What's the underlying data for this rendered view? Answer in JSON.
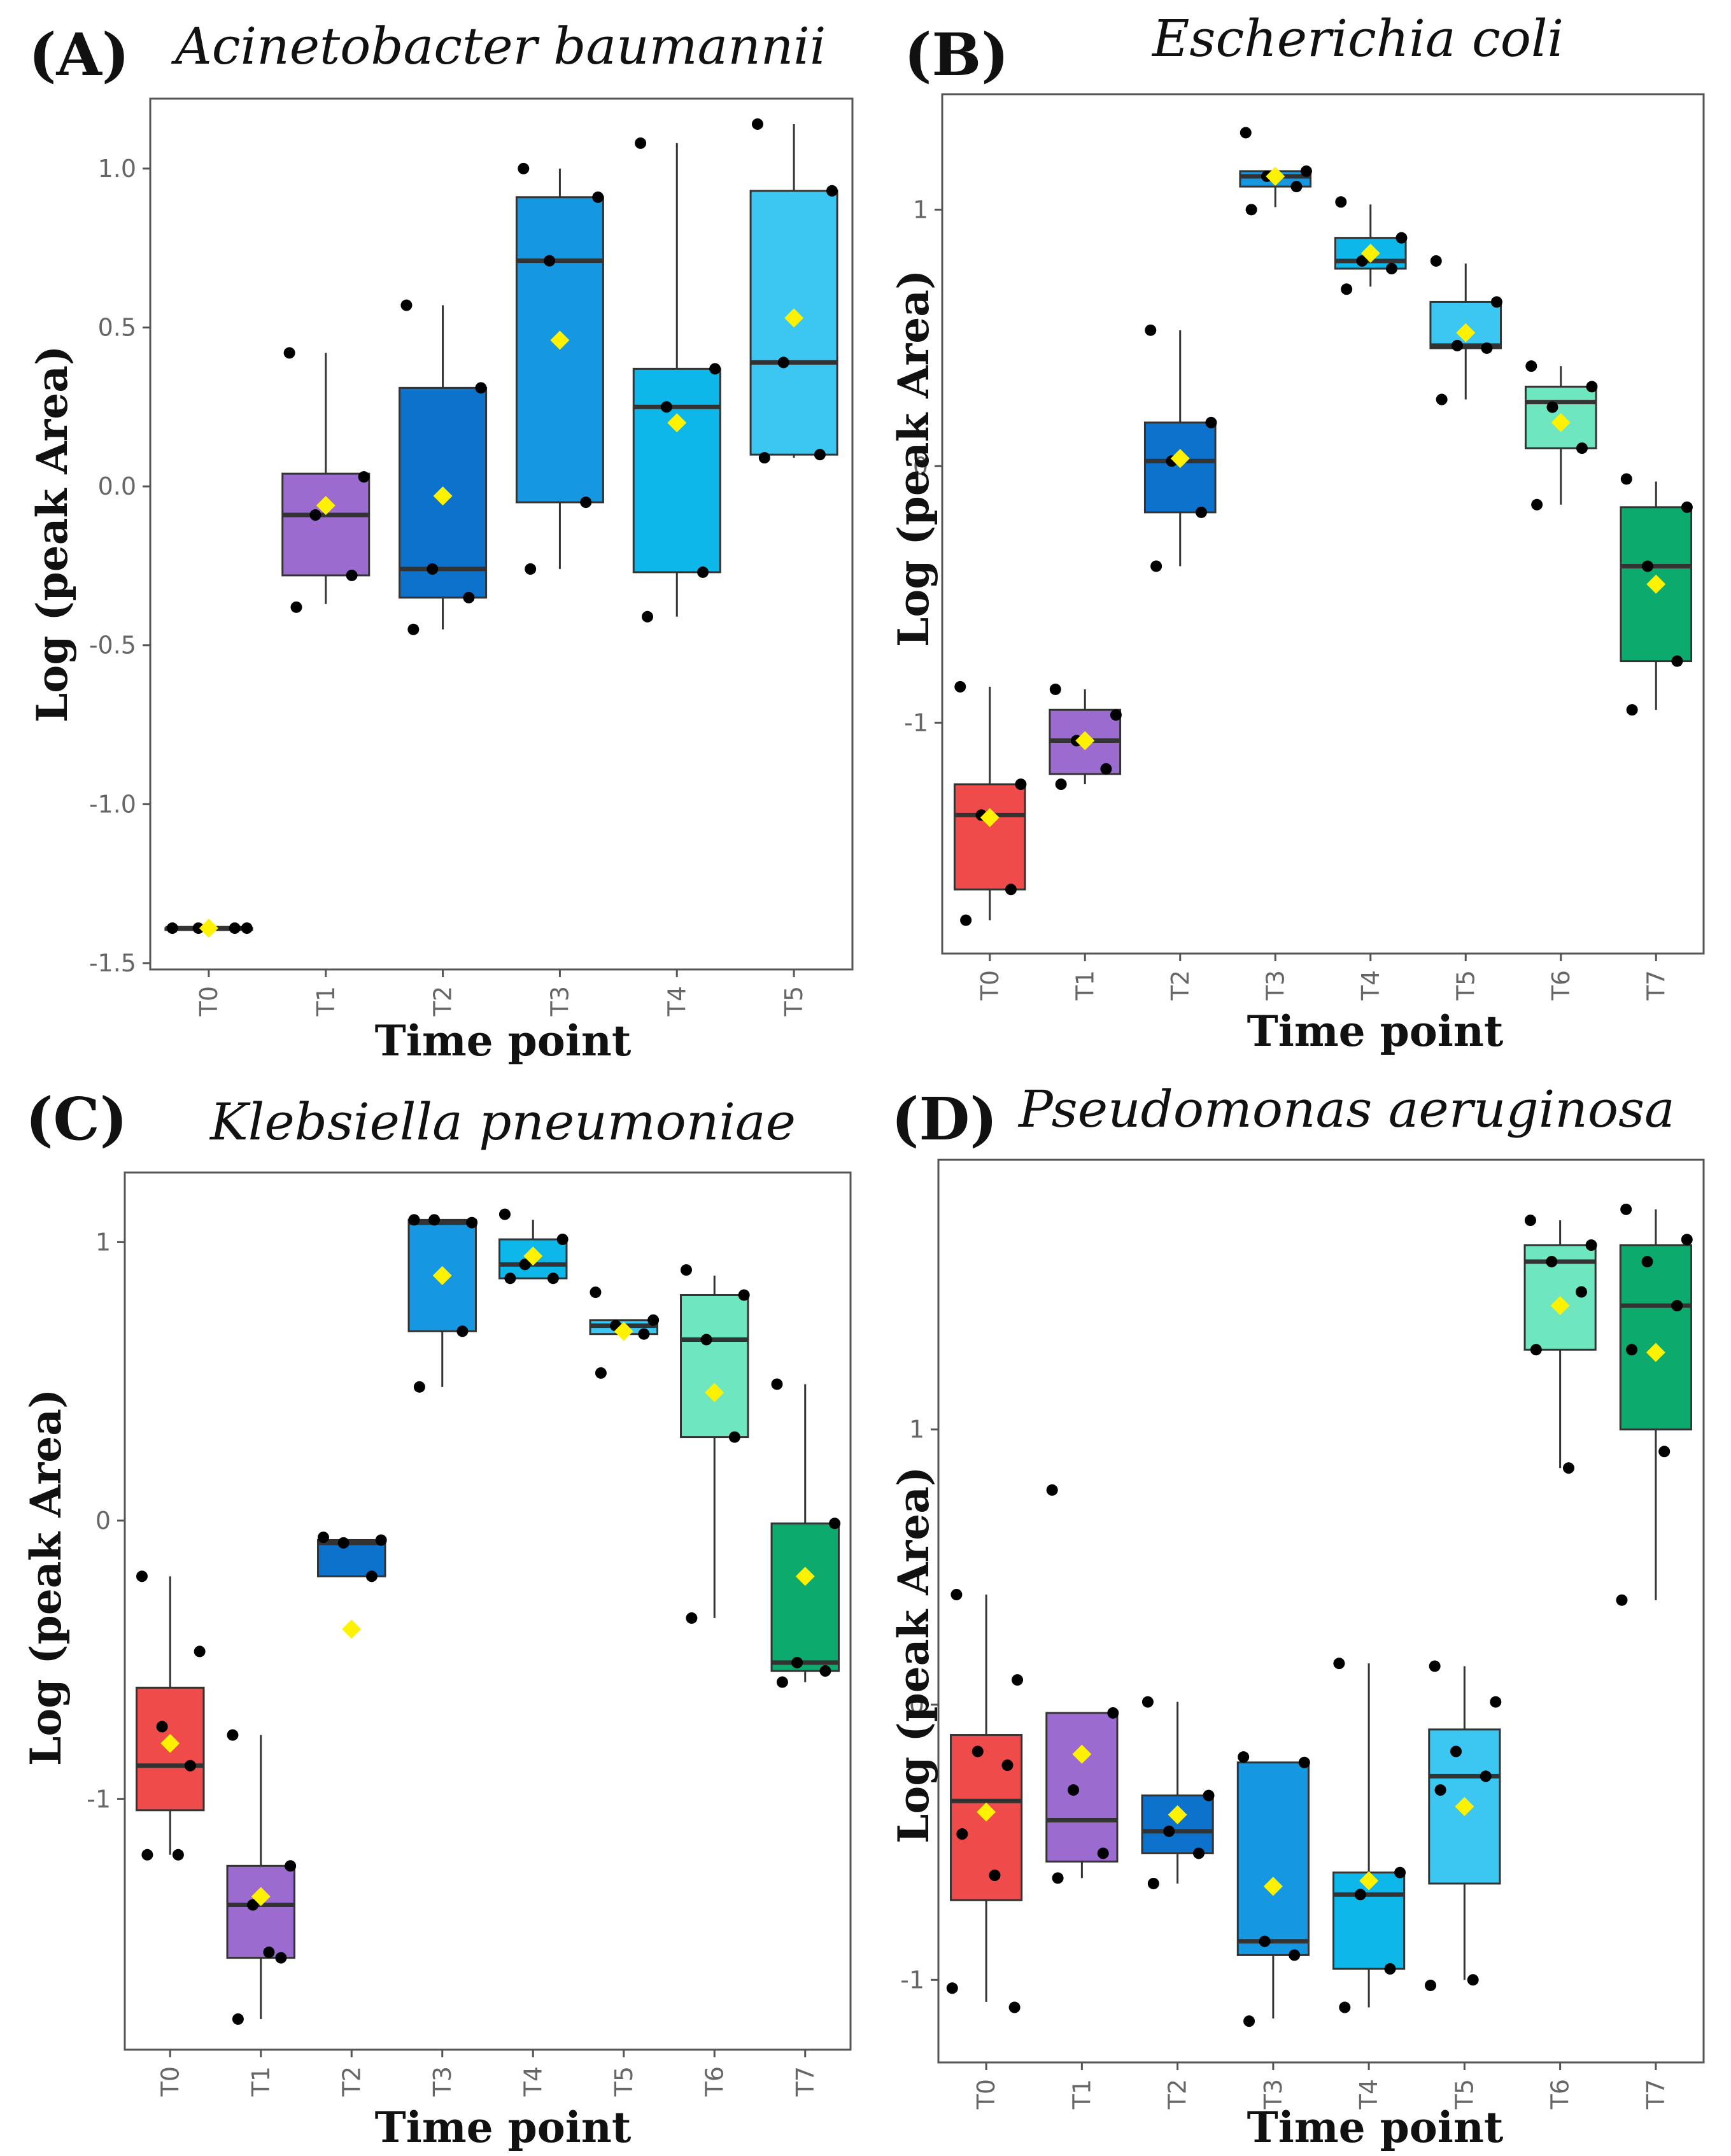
{
  "colors": {
    "T0": "#F04B4B",
    "T1": "#9B6BD0",
    "T2": "#0C72CC",
    "T3": "#1598E1",
    "T4": "#0DB7EA",
    "T5": "#3CC7F2",
    "T6": "#6EE6C0",
    "T7": "#0DAA6E",
    "mean_marker": "#FFF200",
    "points": "#000000"
  },
  "chart_data": [
    {
      "type": "box",
      "panel": "(A)",
      "title": "Acinetobacter baumannii",
      "xlabel": "Time point",
      "ylabel": "Log (peak Area)",
      "ylim": [
        -1.52,
        1.22
      ],
      "yticks": [
        -1.5,
        -1.0,
        -0.5,
        0.0,
        0.5,
        1.0
      ],
      "ytick_labels": [
        "-1.5",
        "-1.0",
        "-0.5",
        "0.0",
        "0.5",
        "1.0"
      ],
      "categories": [
        "T0",
        "T1",
        "T2",
        "T3",
        "T4",
        "T5"
      ],
      "boxes": [
        {
          "cat": "T0",
          "q1": -1.39,
          "median": -1.39,
          "q3": -1.39,
          "wlo": -1.39,
          "whi": -1.39,
          "mean": -1.39,
          "points": [
            -1.39,
            -1.39,
            -1.39,
            -1.39
          ]
        },
        {
          "cat": "T1",
          "q1": -0.28,
          "median": -0.09,
          "q3": 0.04,
          "wlo": -0.37,
          "whi": 0.42,
          "mean": -0.06,
          "points": [
            0.42,
            0.03,
            -0.09,
            -0.28,
            -0.38
          ]
        },
        {
          "cat": "T2",
          "q1": -0.35,
          "median": -0.26,
          "q3": 0.31,
          "wlo": -0.45,
          "whi": 0.57,
          "mean": -0.03,
          "points": [
            0.57,
            0.31,
            -0.26,
            -0.35,
            -0.45
          ]
        },
        {
          "cat": "T3",
          "q1": -0.05,
          "median": 0.71,
          "q3": 0.91,
          "wlo": -0.26,
          "whi": 1.0,
          "mean": 0.46,
          "points": [
            1.0,
            0.91,
            0.71,
            -0.05,
            -0.26
          ]
        },
        {
          "cat": "T4",
          "q1": -0.27,
          "median": 0.25,
          "q3": 0.37,
          "wlo": -0.41,
          "whi": 1.08,
          "mean": 0.2,
          "points": [
            1.08,
            0.37,
            0.25,
            -0.27,
            -0.41
          ]
        },
        {
          "cat": "T5",
          "q1": 0.1,
          "median": 0.39,
          "q3": 0.93,
          "wlo": 0.09,
          "whi": 1.14,
          "mean": 0.53,
          "points": [
            1.14,
            0.93,
            0.39,
            0.1,
            0.09
          ]
        }
      ]
    },
    {
      "type": "box",
      "panel": "(B)",
      "title": "Escherichia coli",
      "xlabel": "Time point",
      "ylabel": "Log (peak Area)",
      "ylim": [
        -1.9,
        1.45
      ],
      "yticks": [
        -1,
        0,
        1
      ],
      "ytick_labels": [
        "-1",
        "0",
        "1"
      ],
      "categories": [
        "T0",
        "T1",
        "T2",
        "T3",
        "T4",
        "T5",
        "T6",
        "T7"
      ],
      "boxes": [
        {
          "cat": "T0",
          "q1": -1.65,
          "median": -1.36,
          "q3": -1.24,
          "wlo": -1.77,
          "whi": -0.86,
          "mean": -1.37,
          "points": [
            -0.86,
            -1.24,
            -1.36,
            -1.65,
            -1.77
          ]
        },
        {
          "cat": "T1",
          "q1": -1.2,
          "median": -1.07,
          "q3": -0.95,
          "wlo": -1.24,
          "whi": -0.87,
          "mean": -1.07,
          "points": [
            -0.87,
            -0.97,
            -1.07,
            -1.18,
            -1.24
          ]
        },
        {
          "cat": "T2",
          "q1": -0.18,
          "median": 0.02,
          "q3": 0.17,
          "wlo": -0.39,
          "whi": 0.53,
          "mean": 0.03,
          "points": [
            0.53,
            0.17,
            0.02,
            -0.18,
            -0.39
          ]
        },
        {
          "cat": "T3",
          "q1": 1.09,
          "median": 1.13,
          "q3": 1.15,
          "wlo": 1.01,
          "whi": 1.15,
          "mean": 1.13,
          "points": [
            1.3,
            1.15,
            1.13,
            1.09,
            1.0
          ]
        },
        {
          "cat": "T4",
          "q1": 0.77,
          "median": 0.8,
          "q3": 0.89,
          "wlo": 0.7,
          "whi": 1.02,
          "mean": 0.83,
          "points": [
            1.03,
            0.89,
            0.8,
            0.77,
            0.69
          ]
        },
        {
          "cat": "T5",
          "q1": 0.46,
          "median": 0.47,
          "q3": 0.64,
          "wlo": 0.26,
          "whi": 0.79,
          "mean": 0.52,
          "points": [
            0.8,
            0.64,
            0.47,
            0.46,
            0.26
          ]
        },
        {
          "cat": "T6",
          "q1": 0.07,
          "median": 0.25,
          "q3": 0.31,
          "wlo": -0.15,
          "whi": 0.39,
          "mean": 0.17,
          "points": [
            0.39,
            0.31,
            0.23,
            0.07,
            -0.15
          ]
        },
        {
          "cat": "T7",
          "q1": -0.76,
          "median": -0.39,
          "q3": -0.16,
          "wlo": -0.95,
          "whi": -0.06,
          "mean": -0.46,
          "points": [
            -0.05,
            -0.16,
            -0.39,
            -0.76,
            -0.95
          ]
        }
      ]
    },
    {
      "type": "box",
      "panel": "(C)",
      "title": "Klebsiella pneumoniae",
      "xlabel": "Time point",
      "ylabel": "Log (peak Area)",
      "ylim": [
        -1.9,
        1.25
      ],
      "yticks": [
        -1,
        0,
        1
      ],
      "ytick_labels": [
        "-1",
        "0",
        "1"
      ],
      "categories": [
        "T0",
        "T1",
        "T2",
        "T3",
        "T4",
        "T5",
        "T6",
        "T7"
      ],
      "boxes": [
        {
          "cat": "T0",
          "q1": -1.04,
          "median": -0.88,
          "q3": -0.6,
          "wlo": -1.2,
          "whi": -0.2,
          "mean": -0.8,
          "points": [
            -0.2,
            -0.47,
            -0.74,
            -0.88,
            -1.2,
            -1.2
          ]
        },
        {
          "cat": "T1",
          "q1": -1.57,
          "median": -1.38,
          "q3": -1.24,
          "wlo": -1.79,
          "whi": -0.77,
          "mean": -1.35,
          "points": [
            -0.77,
            -1.24,
            -1.38,
            -1.57,
            -1.79,
            -1.55
          ]
        },
        {
          "cat": "T2",
          "q1": -0.2,
          "median": -0.08,
          "q3": -0.07,
          "wlo": -0.2,
          "whi": -0.07,
          "mean": -0.39,
          "points": [
            -0.06,
            -0.07,
            -0.08,
            -0.2
          ]
        },
        {
          "cat": "T3",
          "q1": 0.68,
          "median": 1.07,
          "q3": 1.08,
          "wlo": 0.48,
          "whi": 1.08,
          "mean": 0.88,
          "points": [
            1.08,
            1.07,
            1.08,
            0.68,
            0.48
          ]
        },
        {
          "cat": "T4",
          "q1": 0.87,
          "median": 0.92,
          "q3": 1.01,
          "wlo": 0.87,
          "whi": 1.08,
          "mean": 0.95,
          "points": [
            1.1,
            1.01,
            0.92,
            0.87,
            0.87
          ]
        },
        {
          "cat": "T5",
          "q1": 0.67,
          "median": 0.7,
          "q3": 0.72,
          "wlo": 0.67,
          "whi": 0.72,
          "mean": 0.68,
          "points": [
            0.82,
            0.72,
            0.7,
            0.67,
            0.53
          ]
        },
        {
          "cat": "T6",
          "q1": 0.3,
          "median": 0.65,
          "q3": 0.81,
          "wlo": -0.35,
          "whi": 0.88,
          "mean": 0.46,
          "points": [
            0.9,
            0.81,
            0.65,
            0.3,
            -0.35
          ]
        },
        {
          "cat": "T7",
          "q1": -0.54,
          "median": -0.51,
          "q3": -0.01,
          "wlo": -0.58,
          "whi": 0.49,
          "mean": -0.2,
          "points": [
            0.49,
            -0.01,
            -0.51,
            -0.54,
            -0.58
          ]
        }
      ]
    },
    {
      "type": "box",
      "panel": "(D)",
      "title": "Pseudomonas aeruginosa",
      "xlabel": "Time point",
      "ylabel": "Log (peak Area)",
      "ylim": [
        -1.3,
        1.98
      ],
      "yticks": [
        -1,
        0,
        1
      ],
      "ytick_labels": [
        "-1",
        "0",
        "1"
      ],
      "categories": [
        "T0",
        "T1",
        "T2",
        "T3",
        "T4",
        "T5",
        "T6",
        "T7"
      ],
      "boxes": [
        {
          "cat": "T0",
          "q1": -0.71,
          "median": -0.35,
          "q3": -0.11,
          "wlo": -1.08,
          "whi": 0.4,
          "mean": -0.39,
          "points": [
            0.4,
            0.09,
            -0.17,
            -0.22,
            -0.47,
            -0.62,
            -1.03,
            -1.1
          ]
        },
        {
          "cat": "T1",
          "q1": -0.57,
          "median": -0.42,
          "q3": -0.03,
          "wlo": -0.63,
          "whi": -0.03,
          "mean": -0.18,
          "points": [
            0.78,
            -0.03,
            -0.31,
            -0.54,
            -0.63
          ]
        },
        {
          "cat": "T2",
          "q1": -0.54,
          "median": -0.46,
          "q3": -0.33,
          "wlo": -0.65,
          "whi": 0.01,
          "mean": -0.4,
          "points": [
            0.01,
            -0.33,
            -0.46,
            -0.54,
            -0.65
          ]
        },
        {
          "cat": "T3",
          "q1": -0.91,
          "median": -0.86,
          "q3": -0.21,
          "wlo": -1.14,
          "whi": -0.21,
          "mean": -0.66,
          "points": [
            -0.19,
            -0.21,
            -0.86,
            -0.91,
            -1.15
          ]
        },
        {
          "cat": "T4",
          "q1": -0.96,
          "median": -0.69,
          "q3": -0.61,
          "wlo": -1.1,
          "whi": 0.15,
          "mean": -0.64,
          "points": [
            0.15,
            -0.61,
            -0.69,
            -0.96,
            -1.1
          ]
        },
        {
          "cat": "T5",
          "q1": -0.65,
          "median": -0.26,
          "q3": -0.09,
          "wlo": -1.0,
          "whi": 0.14,
          "mean": -0.37,
          "points": [
            0.14,
            0.01,
            -0.17,
            -0.26,
            -0.31,
            -1.0,
            -1.02
          ]
        },
        {
          "cat": "T6",
          "q1": 1.29,
          "median": 1.61,
          "q3": 1.67,
          "wlo": 0.86,
          "whi": 1.76,
          "mean": 1.45,
          "points": [
            1.76,
            1.67,
            1.61,
            1.5,
            1.29,
            0.86
          ]
        },
        {
          "cat": "T7",
          "q1": 1.0,
          "median": 1.45,
          "q3": 1.67,
          "wlo": 0.38,
          "whi": 1.8,
          "mean": 1.28,
          "points": [
            1.8,
            1.69,
            1.61,
            1.45,
            1.29,
            0.92,
            0.38
          ]
        }
      ]
    }
  ]
}
